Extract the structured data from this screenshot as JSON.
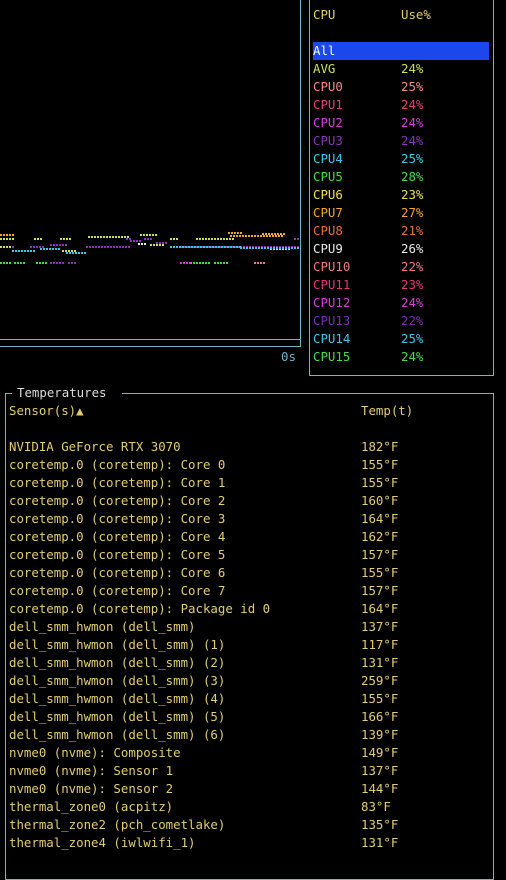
{
  "graph": {
    "time_label": "0s"
  },
  "cpu_table": {
    "col_name": "CPU",
    "col_use": "Use%",
    "rows": [
      {
        "name": "All",
        "use": "",
        "color": "#ffffff",
        "selected": true
      },
      {
        "name": "AVG",
        "use": "24%",
        "color": "#c8e052"
      },
      {
        "name": "CPU0",
        "use": "25%",
        "color": "#f28b82"
      },
      {
        "name": "CPU1",
        "use": "24%",
        "color": "#e0407a"
      },
      {
        "name": "CPU2",
        "use": "24%",
        "color": "#d13fd6"
      },
      {
        "name": "CPU3",
        "use": "24%",
        "color": "#8a32b8"
      },
      {
        "name": "CPU4",
        "use": "25%",
        "color": "#3fc6e6"
      },
      {
        "name": "CPU5",
        "use": "28%",
        "color": "#49d849"
      },
      {
        "name": "CPU6",
        "use": "23%",
        "color": "#f1e04a"
      },
      {
        "name": "CPU7",
        "use": "27%",
        "color": "#f5a623"
      },
      {
        "name": "CPU8",
        "use": "21%",
        "color": "#e0703a"
      },
      {
        "name": "CPU9",
        "use": "26%",
        "color": "#e8e8e8"
      },
      {
        "name": "CPU10",
        "use": "22%",
        "color": "#f07a7a"
      },
      {
        "name": "CPU11",
        "use": "23%",
        "color": "#e3367a"
      },
      {
        "name": "CPU12",
        "use": "24%",
        "color": "#d13fd6"
      },
      {
        "name": "CPU13",
        "use": "22%",
        "color": "#7a2fb0"
      },
      {
        "name": "CPU14",
        "use": "25%",
        "color": "#3fc6e6"
      },
      {
        "name": "CPU15",
        "use": "24%",
        "color": "#49d849"
      }
    ]
  },
  "temperatures": {
    "title": "Temperatures",
    "col_sensor": "Sensor(s)▲",
    "col_temp": "Temp(t)",
    "rows": [
      {
        "sensor": "NVIDIA GeForce RTX 3070",
        "temp": "182°F"
      },
      {
        "sensor": "coretemp.0 (coretemp): Core 0",
        "temp": "155°F"
      },
      {
        "sensor": "coretemp.0 (coretemp): Core 1",
        "temp": "155°F"
      },
      {
        "sensor": "coretemp.0 (coretemp): Core 2",
        "temp": "160°F"
      },
      {
        "sensor": "coretemp.0 (coretemp): Core 3",
        "temp": "164°F"
      },
      {
        "sensor": "coretemp.0 (coretemp): Core 4",
        "temp": "162°F"
      },
      {
        "sensor": "coretemp.0 (coretemp): Core 5",
        "temp": "157°F"
      },
      {
        "sensor": "coretemp.0 (coretemp): Core 6",
        "temp": "155°F"
      },
      {
        "sensor": "coretemp.0 (coretemp): Core 7",
        "temp": "157°F"
      },
      {
        "sensor": "coretemp.0 (coretemp): Package id 0",
        "temp": "164°F"
      },
      {
        "sensor": "dell_smm_hwmon (dell_smm)",
        "temp": "137°F"
      },
      {
        "sensor": "dell_smm_hwmon (dell_smm) (1)",
        "temp": "117°F"
      },
      {
        "sensor": "dell_smm_hwmon (dell_smm) (2)",
        "temp": "131°F"
      },
      {
        "sensor": "dell_smm_hwmon (dell_smm) (3)",
        "temp": "259°F"
      },
      {
        "sensor": "dell_smm_hwmon (dell_smm) (4)",
        "temp": "155°F"
      },
      {
        "sensor": "dell_smm_hwmon (dell_smm) (5)",
        "temp": "166°F"
      },
      {
        "sensor": "dell_smm_hwmon (dell_smm) (6)",
        "temp": "139°F"
      },
      {
        "sensor": "nvme0 (nvme): Composite",
        "temp": "149°F"
      },
      {
        "sensor": "nvme0 (nvme): Sensor 1",
        "temp": "137°F"
      },
      {
        "sensor": "nvme0 (nvme): Sensor 2",
        "temp": "144°F"
      },
      {
        "sensor": "thermal_zone0 (acpitz)",
        "temp": "83°F"
      },
      {
        "sensor": "thermal_zone2 (pch_cometlake)",
        "temp": "135°F"
      },
      {
        "sensor": "thermal_zone4 (iwlwifi_1)",
        "temp": "131°F"
      }
    ]
  }
}
